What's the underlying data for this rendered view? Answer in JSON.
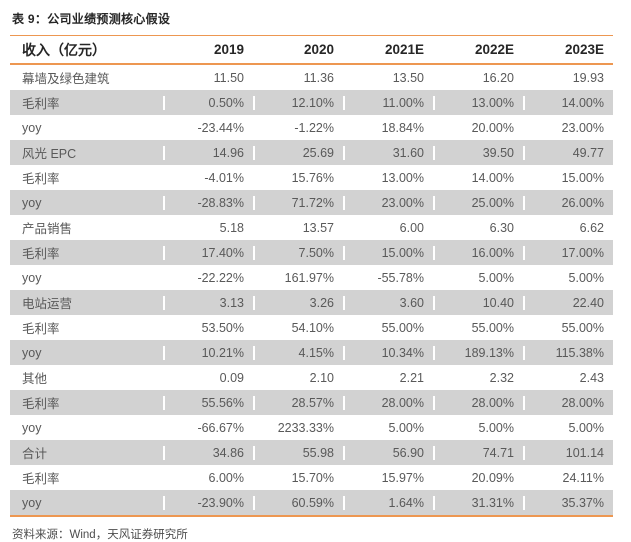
{
  "page": {
    "title": "表 9：公司业绩预测核心假设",
    "source": "资料来源：Wind，天风证券研究所"
  },
  "colors": {
    "accent_orange": "#ED9751",
    "row_shade_gray": "#D2D2D2",
    "body_text": "#595959",
    "header_text": "#262626"
  },
  "chart_data": {
    "type": "table",
    "title": "表 9：公司业绩预测核心假设",
    "columns": [
      "收入（亿元）",
      "2019",
      "2020",
      "2021E",
      "2022E",
      "2023E"
    ],
    "rows": [
      {
        "label": "幕墙及绿色建筑",
        "values": [
          "11.50",
          "11.36",
          "13.50",
          "16.20",
          "19.93"
        ]
      },
      {
        "label": "毛利率",
        "values": [
          "0.50%",
          "12.10%",
          "11.00%",
          "13.00%",
          "14.00%"
        ]
      },
      {
        "label": "yoy",
        "values": [
          "-23.44%",
          "-1.22%",
          "18.84%",
          "20.00%",
          "23.00%"
        ]
      },
      {
        "label": "风光 EPC",
        "values": [
          "14.96",
          "25.69",
          "31.60",
          "39.50",
          "49.77"
        ]
      },
      {
        "label": "毛利率",
        "values": [
          "-4.01%",
          "15.76%",
          "13.00%",
          "14.00%",
          "15.00%"
        ]
      },
      {
        "label": "yoy",
        "values": [
          "-28.83%",
          "71.72%",
          "23.00%",
          "25.00%",
          "26.00%"
        ]
      },
      {
        "label": "产品销售",
        "values": [
          "5.18",
          "13.57",
          "6.00",
          "6.30",
          "6.62"
        ]
      },
      {
        "label": "毛利率",
        "values": [
          "17.40%",
          "7.50%",
          "15.00%",
          "16.00%",
          "17.00%"
        ]
      },
      {
        "label": "yoy",
        "values": [
          "-22.22%",
          "161.97%",
          "-55.78%",
          "5.00%",
          "5.00%"
        ]
      },
      {
        "label": "电站运营",
        "values": [
          "3.13",
          "3.26",
          "3.60",
          "10.40",
          "22.40"
        ]
      },
      {
        "label": "毛利率",
        "values": [
          "53.50%",
          "54.10%",
          "55.00%",
          "55.00%",
          "55.00%"
        ]
      },
      {
        "label": "yoy",
        "values": [
          "10.21%",
          "4.15%",
          "10.34%",
          "189.13%",
          "115.38%"
        ]
      },
      {
        "label": "其他",
        "values": [
          "0.09",
          "2.10",
          "2.21",
          "2.32",
          "2.43"
        ]
      },
      {
        "label": "毛利率",
        "values": [
          "55.56%",
          "28.57%",
          "28.00%",
          "28.00%",
          "28.00%"
        ]
      },
      {
        "label": "yoy",
        "values": [
          "-66.67%",
          "2233.33%",
          "5.00%",
          "5.00%",
          "5.00%"
        ]
      },
      {
        "label": "合计",
        "values": [
          "34.86",
          "55.98",
          "56.90",
          "74.71",
          "101.14"
        ]
      },
      {
        "label": "毛利率",
        "values": [
          "6.00%",
          "15.70%",
          "15.97%",
          "20.09%",
          "24.11%"
        ]
      },
      {
        "label": "yoy",
        "values": [
          "-23.90%",
          "60.59%",
          "1.64%",
          "31.31%",
          "35.37%"
        ]
      }
    ]
  }
}
